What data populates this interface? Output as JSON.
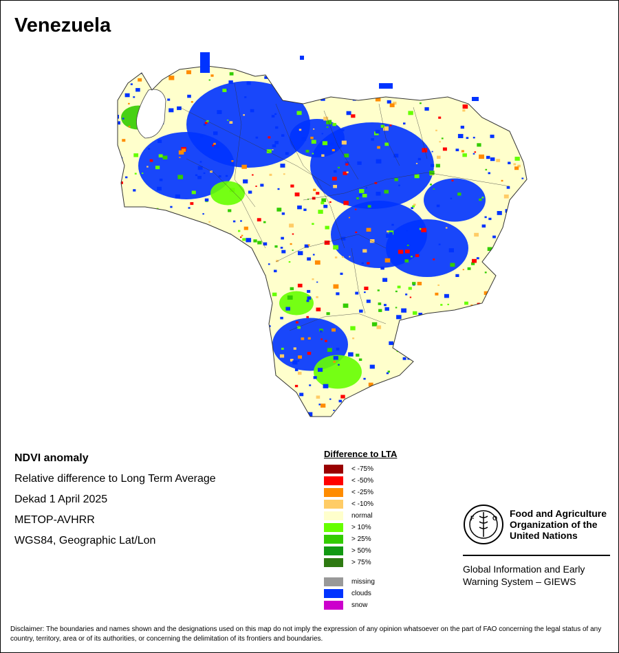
{
  "title": "Venezuela",
  "info": {
    "product": "NDVI anomaly",
    "description": "Relative difference to Long Term Average",
    "period": "Dekad 1 April 2025",
    "sensor": "METOP-AVHRR",
    "projection": "WGS84, Geographic Lat/Lon"
  },
  "legend": {
    "title": "Difference to LTA",
    "classes": [
      {
        "label": "< -75%",
        "color": "#990000"
      },
      {
        "label": "< -50%",
        "color": "#ff0000"
      },
      {
        "label": "< -25%",
        "color": "#ff8c00"
      },
      {
        "label": "< -10%",
        "color": "#ffcc66"
      },
      {
        "label": "normal",
        "color": "#ffffcc"
      },
      {
        "label": "> 10%",
        "color": "#66ff00"
      },
      {
        "label": "> 25%",
        "color": "#33cc00"
      },
      {
        "label": "> 50%",
        "color": "#129912"
      },
      {
        "label": "> 75%",
        "color": "#2e7a12"
      }
    ],
    "extra": [
      {
        "label": "missing",
        "color": "#999999"
      },
      {
        "label": "clouds",
        "color": "#0033ff"
      },
      {
        "label": "snow",
        "color": "#cc00cc"
      }
    ]
  },
  "fao": {
    "line1": "Food and Agriculture",
    "line2": "Organization of the",
    "line3": "United Nations",
    "giews1": "Global Information and Early",
    "giews2": "Warning System – GIEWS",
    "emblem_text": "FIAT PANIS",
    "emblem_letters": "FAO"
  },
  "disclaimer": "Disclaimer: The boundaries and names shown and the designations used on this map do not imply the expression of any opinion whatsoever on the part of FAO concerning the legal status of any country, territory, area or of its authorities, or concerning the delimitation of its frontiers and boundaries."
}
